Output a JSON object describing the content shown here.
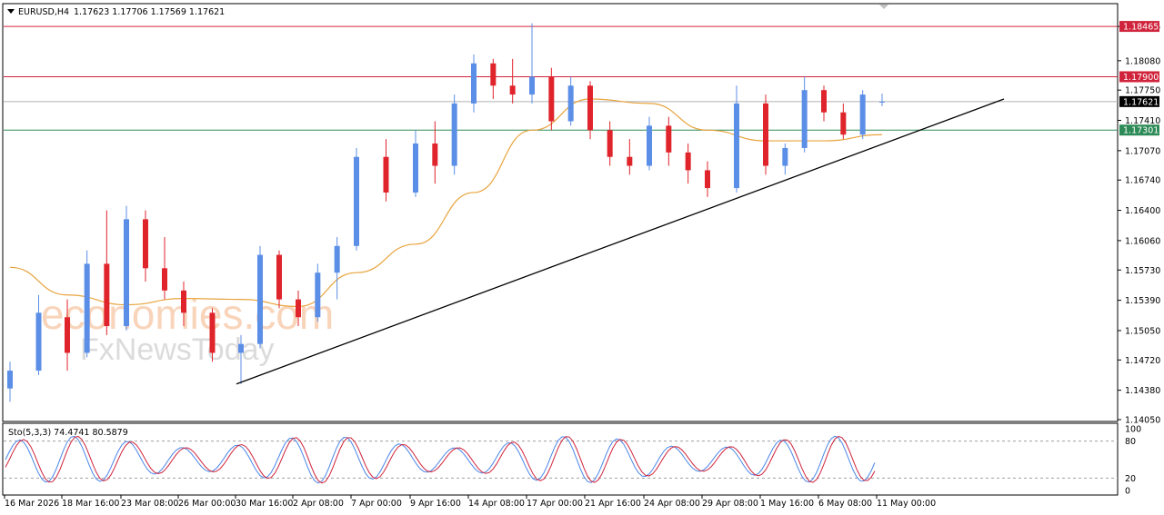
{
  "header": {
    "symbol": "EURUSD,H4",
    "ohlc": "1.17623 1.17706 1.17569 1.17621"
  },
  "watermark": {
    "line1": "economies.com",
    "line2": "FxNewsToday"
  },
  "stochastic": {
    "label": "Sto(5,3,3) 74.4741 80.5879",
    "k": 74.4741,
    "d": 80.5879,
    "levels": [
      80,
      20
    ]
  },
  "colors": {
    "bull": "#5b8ee6",
    "bear": "#e0242b",
    "ma": "#e8a33d",
    "resistance": "#d0243c",
    "support": "#2e8b57",
    "current": "#000000",
    "trendline": "#000000"
  },
  "chart_data": {
    "type": "candlestick",
    "symbol": "EURUSD",
    "timeframe": "H4",
    "ylim": [
      1.1405,
      1.1868
    ],
    "y_ticks": [
      "1.18465",
      "1.18080",
      "1.17750",
      "1.17410",
      "1.17070",
      "1.16740",
      "1.16400",
      "1.16060",
      "1.15730",
      "1.15390",
      "1.15050",
      "1.14720",
      "1.14380",
      "1.14050"
    ],
    "x_labels": [
      "16 Mar 2026",
      "18 Mar 16:00",
      "23 Mar 08:00",
      "26 Mar 00:00",
      "30 Mar 16:00",
      "2 Apr 08:00",
      "7 Apr 00:00",
      "9 Apr 16:00",
      "14 Apr 08:00",
      "17 Apr 00:00",
      "21 Apr 16:00",
      "24 Apr 08:00",
      "29 Apr 08:00",
      "1 May 16:00",
      "6 May 08:00",
      "11 May 00:00"
    ],
    "horizontal_levels": [
      {
        "value": 1.18465,
        "label": "1.18465",
        "role": "resistance"
      },
      {
        "value": 1.179,
        "label": "1.17900",
        "role": "resistance"
      },
      {
        "value": 1.17621,
        "label": "1.17621",
        "role": "current"
      },
      {
        "value": 1.17301,
        "label": "1.17301",
        "role": "support"
      }
    ],
    "trendline": {
      "from": {
        "x": "30 Mar 16:00",
        "y": 1.1445
      },
      "to": {
        "x": "12 May",
        "y": 1.1765
      }
    },
    "ma_path": [
      {
        "x": "16 Mar 2026",
        "y": 1.1576
      },
      {
        "x": "18 Mar 16:00",
        "y": 1.1545
      },
      {
        "x": "23 Mar 08:00",
        "y": 1.1534
      },
      {
        "x": "26 Mar 00:00",
        "y": 1.1541
      },
      {
        "x": "30 Mar 16:00",
        "y": 1.154
      },
      {
        "x": "2 Apr 08:00",
        "y": 1.1532
      },
      {
        "x": "7 Apr 00:00",
        "y": 1.157
      },
      {
        "x": "9 Apr 16:00",
        "y": 1.1602
      },
      {
        "x": "14 Apr 08:00",
        "y": 1.166
      },
      {
        "x": "17 Apr 00:00",
        "y": 1.173
      },
      {
        "x": "21 Apr 16:00",
        "y": 1.1765
      },
      {
        "x": "24 Apr 08:00",
        "y": 1.176
      },
      {
        "x": "29 Apr 08:00",
        "y": 1.173
      },
      {
        "x": "1 May 16:00",
        "y": 1.1718
      },
      {
        "x": "6 May 08:00",
        "y": 1.1718
      },
      {
        "x": "11 May 00:00",
        "y": 1.1725
      }
    ],
    "price_path": [
      {
        "x": "16 Mar 2026",
        "o": 1.144,
        "h": 1.147,
        "l": 1.1425,
        "c": 1.146
      },
      {
        "x": "17 Mar",
        "o": 1.146,
        "h": 1.1545,
        "l": 1.1455,
        "c": 1.1525
      },
      {
        "x": "18 Mar 16:00",
        "o": 1.152,
        "h": 1.154,
        "l": 1.146,
        "c": 1.148
      },
      {
        "x": "19 Mar",
        "o": 1.148,
        "h": 1.1595,
        "l": 1.1475,
        "c": 1.158
      },
      {
        "x": "20 Mar",
        "o": 1.158,
        "h": 1.164,
        "l": 1.15,
        "c": 1.151
      },
      {
        "x": "23 Mar 08:00",
        "o": 1.151,
        "h": 1.1645,
        "l": 1.1505,
        "c": 1.163
      },
      {
        "x": "24 Mar",
        "o": 1.163,
        "h": 1.164,
        "l": 1.156,
        "c": 1.1575
      },
      {
        "x": "25 Mar",
        "o": 1.1575,
        "h": 1.161,
        "l": 1.154,
        "c": 1.155
      },
      {
        "x": "26 Mar 00:00",
        "o": 1.155,
        "h": 1.156,
        "l": 1.151,
        "c": 1.1525
      },
      {
        "x": "27 Mar",
        "o": 1.1525,
        "h": 1.153,
        "l": 1.147,
        "c": 1.148
      },
      {
        "x": "30 Mar 16:00",
        "o": 1.148,
        "h": 1.15,
        "l": 1.1445,
        "c": 1.149
      },
      {
        "x": "31 Mar",
        "o": 1.149,
        "h": 1.16,
        "l": 1.1485,
        "c": 1.159
      },
      {
        "x": "1 Apr",
        "o": 1.159,
        "h": 1.1595,
        "l": 1.153,
        "c": 1.154
      },
      {
        "x": "2 Apr 08:00",
        "o": 1.154,
        "h": 1.155,
        "l": 1.151,
        "c": 1.152
      },
      {
        "x": "3 Apr",
        "o": 1.152,
        "h": 1.158,
        "l": 1.1515,
        "c": 1.157
      },
      {
        "x": "6 Apr",
        "o": 1.157,
        "h": 1.161,
        "l": 1.154,
        "c": 1.16
      },
      {
        "x": "7 Apr 00:00",
        "o": 1.16,
        "h": 1.171,
        "l": 1.1595,
        "c": 1.17
      },
      {
        "x": "8 Apr",
        "o": 1.17,
        "h": 1.172,
        "l": 1.165,
        "c": 1.166
      },
      {
        "x": "9 Apr 16:00",
        "o": 1.166,
        "h": 1.173,
        "l": 1.1655,
        "c": 1.1715
      },
      {
        "x": "10 Apr",
        "o": 1.1715,
        "h": 1.174,
        "l": 1.167,
        "c": 1.169
      },
      {
        "x": "13 Apr",
        "o": 1.169,
        "h": 1.177,
        "l": 1.168,
        "c": 1.176
      },
      {
        "x": "14 Apr 08:00",
        "o": 1.176,
        "h": 1.1815,
        "l": 1.175,
        "c": 1.1805
      },
      {
        "x": "15 Apr",
        "o": 1.1805,
        "h": 1.181,
        "l": 1.1765,
        "c": 1.178
      },
      {
        "x": "16 Apr",
        "o": 1.178,
        "h": 1.181,
        "l": 1.176,
        "c": 1.177
      },
      {
        "x": "17 Apr 00:00",
        "o": 1.177,
        "h": 1.185,
        "l": 1.176,
        "c": 1.179
      },
      {
        "x": "17 Apr 12:00",
        "o": 1.179,
        "h": 1.18,
        "l": 1.173,
        "c": 1.174
      },
      {
        "x": "20 Apr",
        "o": 1.174,
        "h": 1.179,
        "l": 1.1735,
        "c": 1.178
      },
      {
        "x": "21 Apr 16:00",
        "o": 1.178,
        "h": 1.1785,
        "l": 1.172,
        "c": 1.173
      },
      {
        "x": "22 Apr",
        "o": 1.173,
        "h": 1.174,
        "l": 1.169,
        "c": 1.17
      },
      {
        "x": "23 Apr",
        "o": 1.17,
        "h": 1.172,
        "l": 1.168,
        "c": 1.169
      },
      {
        "x": "24 Apr 08:00",
        "o": 1.169,
        "h": 1.1745,
        "l": 1.1685,
        "c": 1.1735
      },
      {
        "x": "27 Apr",
        "o": 1.1735,
        "h": 1.1745,
        "l": 1.169,
        "c": 1.1705
      },
      {
        "x": "28 Apr",
        "o": 1.1705,
        "h": 1.1715,
        "l": 1.167,
        "c": 1.1685
      },
      {
        "x": "29 Apr 08:00",
        "o": 1.1685,
        "h": 1.1695,
        "l": 1.1655,
        "c": 1.1665
      },
      {
        "x": "30 Apr",
        "o": 1.1665,
        "h": 1.178,
        "l": 1.166,
        "c": 1.176
      },
      {
        "x": "1 May 16:00",
        "o": 1.176,
        "h": 1.177,
        "l": 1.168,
        "c": 1.169
      },
      {
        "x": "4 May",
        "o": 1.169,
        "h": 1.1715,
        "l": 1.168,
        "c": 1.171
      },
      {
        "x": "5 May",
        "o": 1.171,
        "h": 1.179,
        "l": 1.1705,
        "c": 1.1775
      },
      {
        "x": "6 May 08:00",
        "o": 1.1775,
        "h": 1.178,
        "l": 1.174,
        "c": 1.175
      },
      {
        "x": "7 May",
        "o": 1.175,
        "h": 1.176,
        "l": 1.172,
        "c": 1.1725
      },
      {
        "x": "8 May",
        "o": 1.1725,
        "h": 1.1775,
        "l": 1.172,
        "c": 1.177
      },
      {
        "x": "11 May 00:00",
        "o": 1.1762,
        "h": 1.1771,
        "l": 1.1757,
        "c": 1.1762
      }
    ]
  }
}
